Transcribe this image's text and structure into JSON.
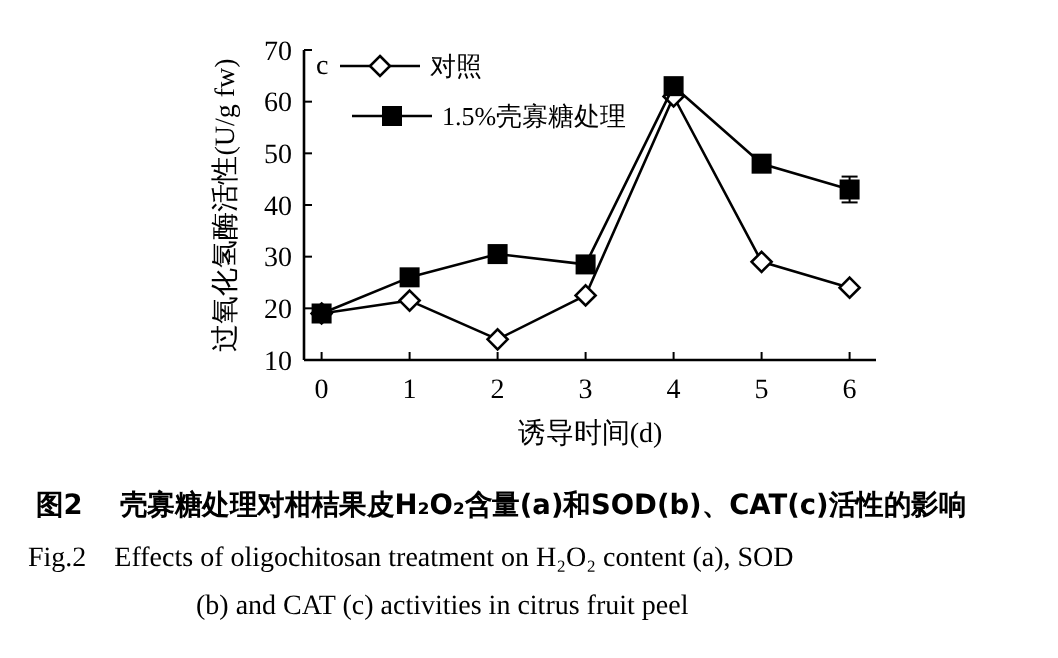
{
  "chart_data": {
    "type": "line",
    "xlabel": "诱导时间(d)",
    "ylabel": "过氧化氢酶活性(U/g fw)",
    "x": [
      0,
      1,
      2,
      3,
      4,
      5,
      6
    ],
    "xlim": [
      -0.2,
      6.3
    ],
    "xticks": [
      0,
      1,
      2,
      3,
      4,
      5,
      6
    ],
    "ylim": [
      10,
      70
    ],
    "yticks": [
      10,
      20,
      30,
      40,
      50,
      60,
      70
    ],
    "grid": false,
    "legend": "top left",
    "line_style": "solid",
    "series": [
      {
        "name": "对照",
        "color": "#000000",
        "marker": "diamond",
        "values": [
          19,
          21.5,
          14,
          22.5,
          61,
          29,
          24
        ]
      },
      {
        "name": "1.5%壳寡糖处理",
        "color": "#000000",
        "marker": "square",
        "values": [
          19,
          26,
          30.5,
          28.5,
          63,
          48,
          43
        ],
        "errors": [
          null,
          null,
          null,
          null,
          1,
          1,
          2.5
        ]
      }
    ],
    "annotations": [
      "c",
      "图2　 壳寡糖处理对柑桔果皮H₂O₂含量(a)和SOD(b)、CAT(c)活性的影响",
      "Fig.2　Effects of oligochitosan treatment on H₂O₂ content (a), SOD",
      "(b) and CAT (c) activities in citrus fruit peel"
    ]
  }
}
